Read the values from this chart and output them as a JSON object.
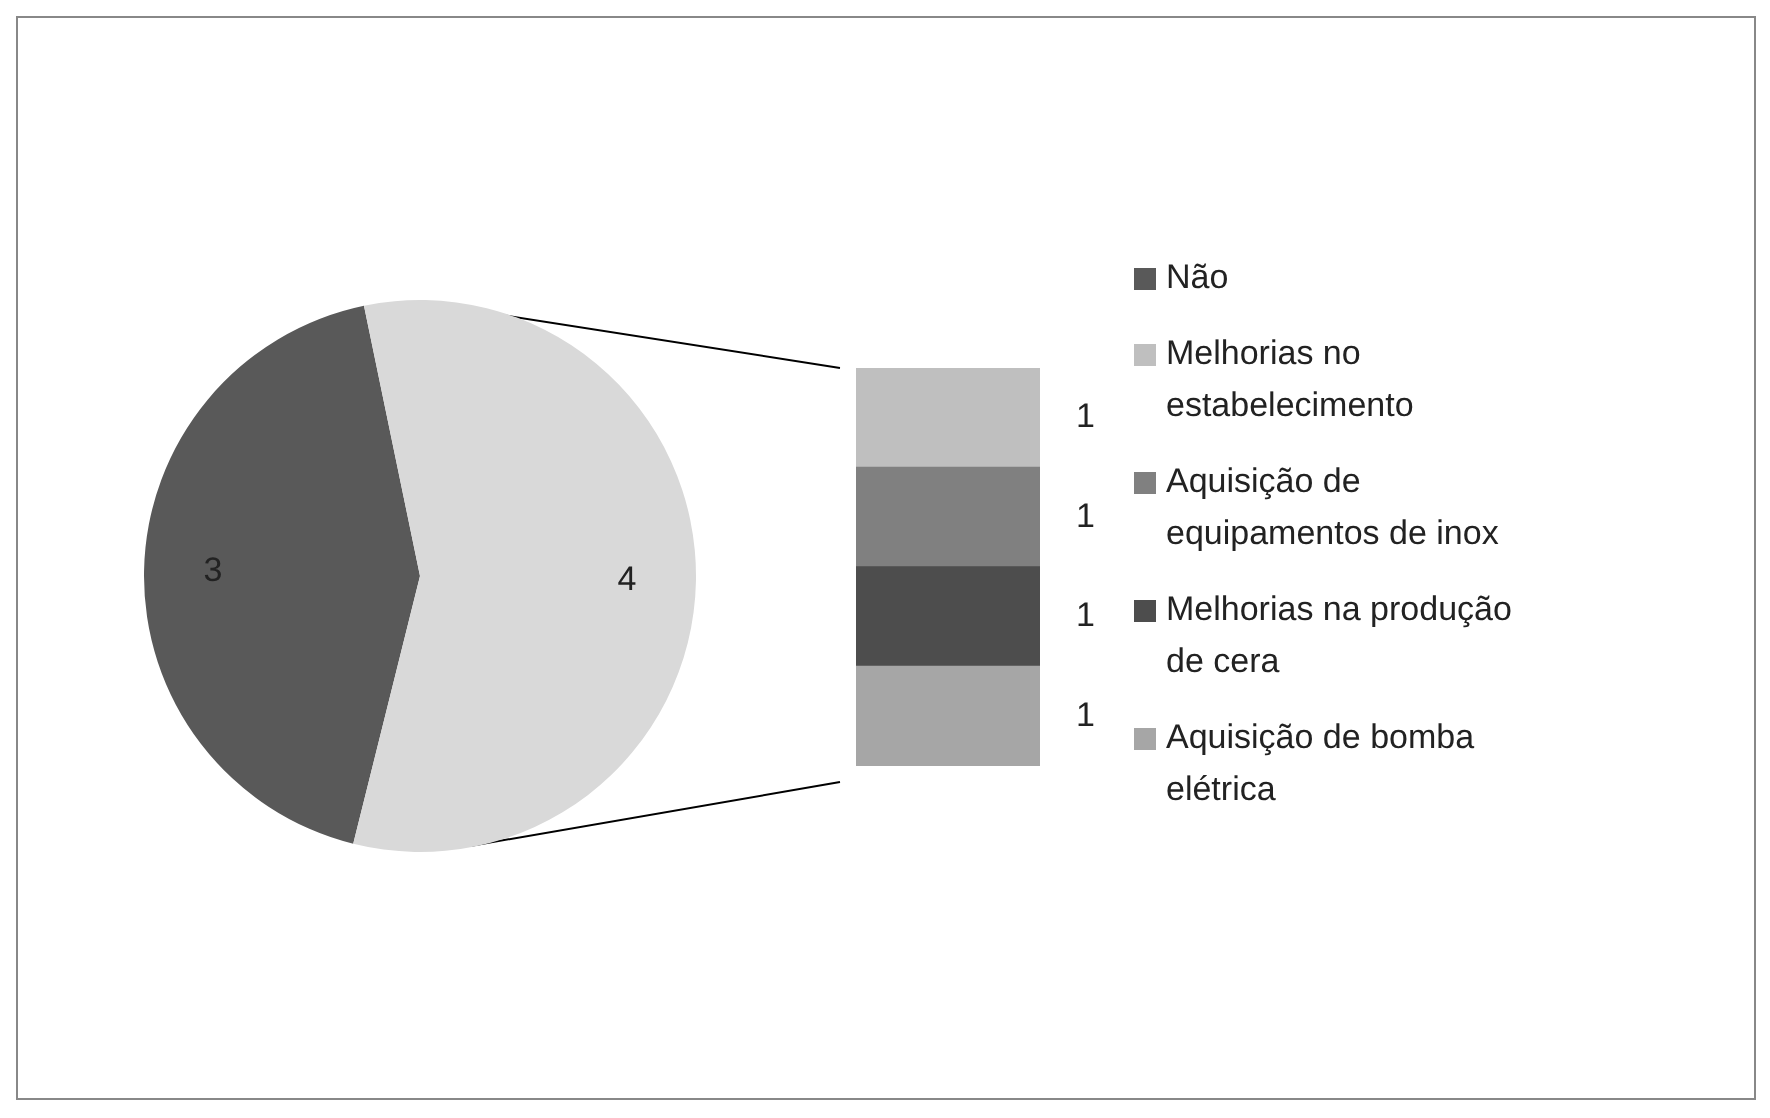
{
  "chart_data": [
    {
      "type": "pie",
      "categories": [
        "Não",
        null
      ],
      "values": [
        3,
        4
      ],
      "colors": [
        "#595959",
        "#d9d9d9"
      ],
      "data_labels": true,
      "legend": "right"
    },
    {
      "type": "other",
      "categories": [
        "Melhorias no estabelecimento",
        "Aquisição de equipamentos de inox",
        "Melhorias na produção de cera",
        "Aquisição de bomba elétrica"
      ],
      "values": [
        1,
        1,
        1,
        1
      ],
      "colors": [
        "#bfbfbf",
        "#808080",
        "#4d4d4d",
        "#a6a6a6"
      ],
      "data_labels": true
    }
  ]
}
